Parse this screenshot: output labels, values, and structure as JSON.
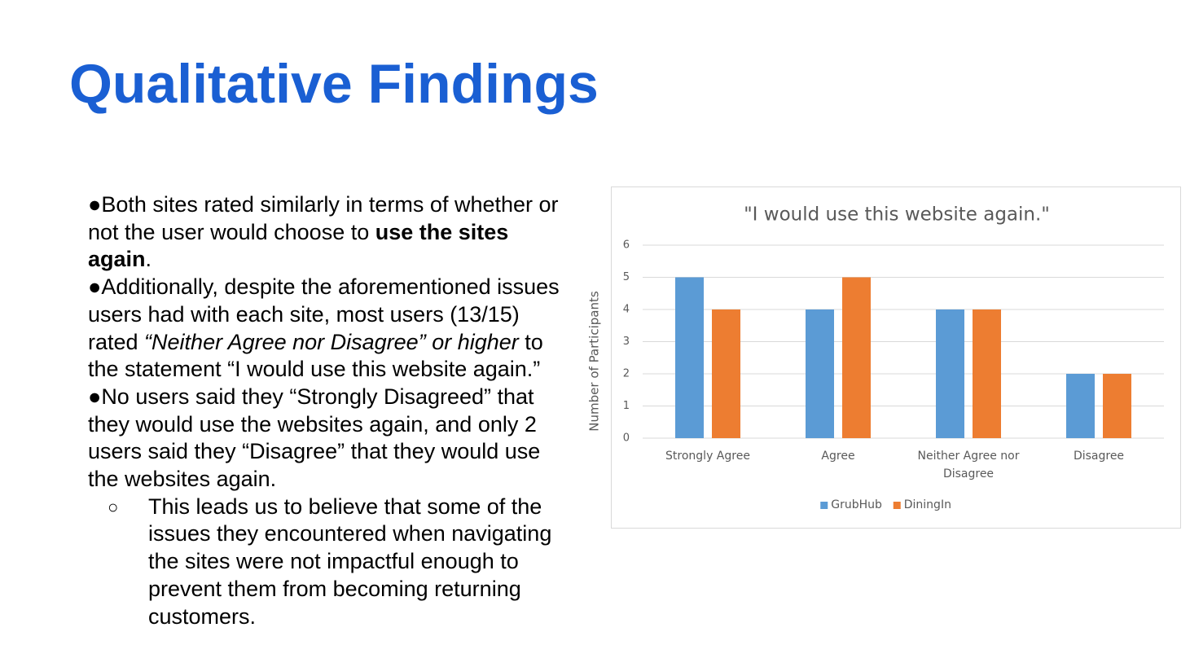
{
  "title": "Qualitative Findings",
  "bullets": [
    {
      "segments": [
        {
          "text": "Both sites rated similarly in terms of whether or not the user would choose to "
        },
        {
          "text": "use the sites again",
          "bold": true
        },
        {
          "text": "."
        }
      ]
    },
    {
      "segments": [
        {
          "text": "Additionally, despite the aforementioned issues users had with each site, most users (13/15) rated "
        },
        {
          "text": "“Neither Agree nor Disagree” or higher",
          "italic": true
        },
        {
          "text": " to the statement “I would use this website again.”"
        }
      ]
    },
    {
      "segments": [
        {
          "text": "No users said they “Strongly Disagreed” that they would use the websites again, and only 2 users said they “Disagree” that they would use the websites again."
        }
      ],
      "sub": [
        {
          "segments": [
            {
              "text": "This leads us to believe that some of the issues they encountered when navigating the sites were not impactful enough to prevent them from becoming returning customers."
            }
          ]
        }
      ]
    }
  ],
  "chart_data": {
    "type": "bar",
    "title": "\"I would use this website again.\"",
    "ylabel": "Number of Participants",
    "categories": [
      "Strongly Agree",
      "Agree",
      "Neither Agree nor Disagree",
      "Disagree"
    ],
    "series": [
      {
        "name": "GrubHub",
        "color": "#5b9bd5",
        "values": [
          5,
          4,
          4,
          2
        ]
      },
      {
        "name": "DiningIn",
        "color": "#ed7d31",
        "values": [
          4,
          5,
          4,
          2
        ]
      }
    ],
    "ylim": [
      0,
      6
    ],
    "yticks": [
      0,
      1,
      2,
      3,
      4,
      5,
      6
    ],
    "grid": true,
    "legend": "bottom"
  }
}
